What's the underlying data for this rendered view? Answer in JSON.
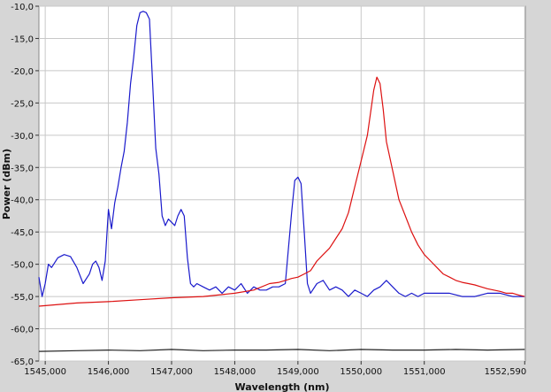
{
  "chart_data": {
    "type": "line",
    "title": "",
    "xlabel": "Wavelength (nm)",
    "ylabel": "Power (dBm)",
    "xlim": [
      1544.9,
      1552.6
    ],
    "ylim": [
      -65,
      -10
    ],
    "grid": true,
    "legend": "none",
    "background_color": "#ffffff",
    "frame_color": "#d6d6d6",
    "x_ticks": [
      {
        "value": 1545.0,
        "label": "1545,000"
      },
      {
        "value": 1546.0,
        "label": "1546,000"
      },
      {
        "value": 1547.0,
        "label": "1547,000"
      },
      {
        "value": 1548.0,
        "label": "1548,000"
      },
      {
        "value": 1549.0,
        "label": "1549,000"
      },
      {
        "value": 1550.0,
        "label": "1550,000"
      },
      {
        "value": 1551.0,
        "label": "1551,000"
      },
      {
        "value": 1552.59,
        "label": "1552,590"
      }
    ],
    "y_ticks": [
      {
        "value": -10,
        "label": "-10,0"
      },
      {
        "value": -15,
        "label": "-15,0"
      },
      {
        "value": -20,
        "label": "-20,0"
      },
      {
        "value": -25,
        "label": "-25,0"
      },
      {
        "value": -30,
        "label": "-30,0"
      },
      {
        "value": -35,
        "label": "-35,0"
      },
      {
        "value": -40,
        "label": "-40,0"
      },
      {
        "value": -45,
        "label": "-45,0"
      },
      {
        "value": -50,
        "label": "-50,0"
      },
      {
        "value": -55,
        "label": "-55,0"
      },
      {
        "value": -60,
        "label": "-60,0"
      },
      {
        "value": -65,
        "label": "-65,0"
      }
    ],
    "series": [
      {
        "color": "#1a1acc",
        "x": [
          1544.9,
          1544.95,
          1545.0,
          1545.05,
          1545.1,
          1545.2,
          1545.3,
          1545.4,
          1545.5,
          1545.6,
          1545.7,
          1545.75,
          1545.8,
          1545.85,
          1545.9,
          1545.95,
          1546.0,
          1546.05,
          1546.1,
          1546.15,
          1546.2,
          1546.25,
          1546.3,
          1546.35,
          1546.4,
          1546.45,
          1546.5,
          1546.55,
          1546.6,
          1546.65,
          1546.7,
          1546.75,
          1546.8,
          1546.85,
          1546.9,
          1546.95,
          1547.0,
          1547.05,
          1547.1,
          1547.15,
          1547.2,
          1547.25,
          1547.3,
          1547.35,
          1547.4,
          1547.5,
          1547.6,
          1547.7,
          1547.8,
          1547.9,
          1548.0,
          1548.1,
          1548.2,
          1548.3,
          1548.4,
          1548.5,
          1548.6,
          1548.7,
          1548.8,
          1548.9,
          1548.95,
          1549.0,
          1549.05,
          1549.1,
          1549.15,
          1549.2,
          1549.3,
          1549.4,
          1549.5,
          1549.6,
          1549.7,
          1549.8,
          1549.9,
          1550.0,
          1550.1,
          1550.2,
          1550.3,
          1550.4,
          1550.5,
          1550.6,
          1550.7,
          1550.8,
          1550.9,
          1551.0,
          1551.2,
          1551.4,
          1551.6,
          1551.8,
          1552.0,
          1552.2,
          1552.4,
          1552.59
        ],
        "y": [
          -52,
          -55,
          -53,
          -50,
          -50.5,
          -49,
          -48.5,
          -48.8,
          -50.5,
          -53,
          -51.5,
          -50,
          -49.5,
          -50.5,
          -52.5,
          -49.5,
          -41.5,
          -44.5,
          -40.5,
          -38,
          -35,
          -32.5,
          -28,
          -22,
          -18,
          -13,
          -11,
          -10.8,
          -11,
          -12,
          -22,
          -32,
          -36,
          -42.5,
          -44,
          -43,
          -43.5,
          -44,
          -42.5,
          -41.5,
          -42.5,
          -49,
          -53,
          -53.5,
          -53,
          -53.5,
          -54,
          -53.5,
          -54.5,
          -53.5,
          -54,
          -53,
          -54.5,
          -53.5,
          -54,
          -54,
          -53.5,
          -53.5,
          -53,
          -42,
          -37,
          -36.5,
          -37.5,
          -45,
          -53,
          -54.5,
          -53,
          -52.5,
          -54,
          -53.5,
          -54,
          -55,
          -54,
          -54.5,
          -55,
          -54,
          -53.5,
          -52.5,
          -53.5,
          -54.5,
          -55,
          -54.5,
          -55,
          -54.5,
          -54.5,
          -54.5,
          -55,
          -55,
          -54.5,
          -54.5,
          -55,
          -55
        ]
      },
      {
        "color": "#dd1111",
        "x": [
          1544.9,
          1545.5,
          1546.0,
          1546.5,
          1547.0,
          1547.5,
          1548.0,
          1548.3,
          1548.55,
          1548.7,
          1548.8,
          1548.9,
          1549.0,
          1549.1,
          1549.2,
          1549.3,
          1549.4,
          1549.5,
          1549.6,
          1549.7,
          1549.8,
          1549.9,
          1550.0,
          1550.1,
          1550.2,
          1550.25,
          1550.3,
          1550.35,
          1550.4,
          1550.5,
          1550.6,
          1550.7,
          1550.8,
          1550.9,
          1551.0,
          1551.1,
          1551.2,
          1551.3,
          1551.4,
          1551.5,
          1551.6,
          1551.7,
          1551.8,
          1551.9,
          1552.0,
          1552.1,
          1552.2,
          1552.3,
          1552.4,
          1552.5,
          1552.59
        ],
        "y": [
          -56.5,
          -56,
          -55.8,
          -55.5,
          -55.2,
          -55,
          -54.5,
          -54,
          -53,
          -52.8,
          -52.5,
          -52.2,
          -52,
          -51.5,
          -51,
          -49.5,
          -48.5,
          -47.5,
          -46,
          -44.5,
          -42,
          -38,
          -34,
          -30,
          -23,
          -21,
          -22,
          -26,
          -31,
          -35.5,
          -40,
          -42.5,
          -45,
          -47,
          -48.5,
          -49.5,
          -50.5,
          -51.5,
          -52,
          -52.5,
          -52.8,
          -53,
          -53.2,
          -53.5,
          -53.8,
          -54,
          -54.2,
          -54.5,
          -54.5,
          -54.8,
          -55
        ]
      },
      {
        "color": "#222222",
        "x": [
          1544.9,
          1545.5,
          1546.0,
          1546.5,
          1547.0,
          1547.5,
          1548.0,
          1548.5,
          1549.0,
          1549.5,
          1550.0,
          1550.5,
          1551.0,
          1551.5,
          1552.0,
          1552.59
        ],
        "y": [
          -63.5,
          -63.4,
          -63.3,
          -63.4,
          -63.2,
          -63.4,
          -63.3,
          -63.3,
          -63.2,
          -63.4,
          -63.2,
          -63.3,
          -63.3,
          -63.2,
          -63.3,
          -63.2
        ]
      }
    ]
  }
}
